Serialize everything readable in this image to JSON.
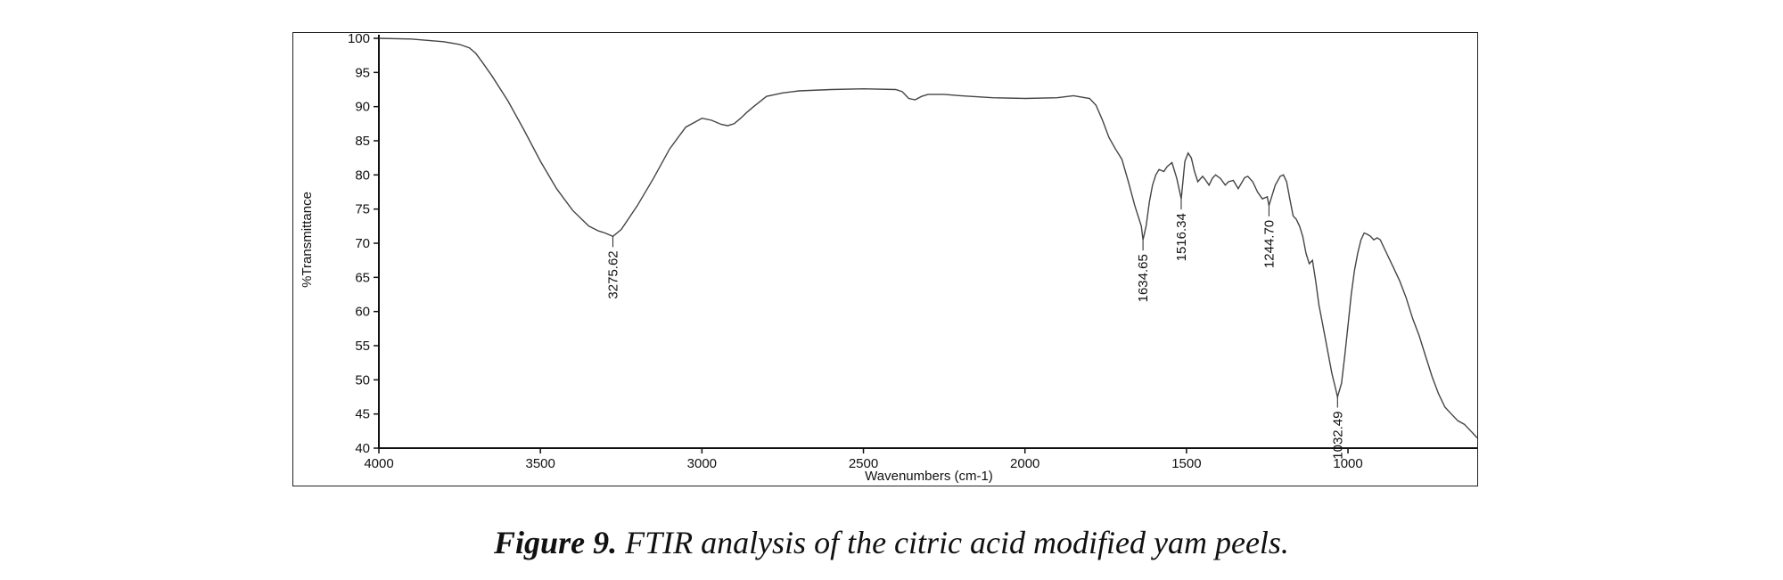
{
  "figure": {
    "caption_prefix": "Figure 9.",
    "caption_text": " FTIR analysis of the citric acid modified yam peels."
  },
  "chart_data": {
    "type": "line",
    "xlabel": "Wavenumbers (cm-1)",
    "ylabel": "%Transmittance",
    "xlim": [
      4000,
      600
    ],
    "ylim": [
      40,
      100
    ],
    "x_reversed": true,
    "grid": false,
    "x_ticks": [
      4000,
      3500,
      3000,
      2500,
      2000,
      1500,
      1000
    ],
    "y_ticks": [
      40,
      45,
      50,
      55,
      60,
      65,
      70,
      75,
      80,
      85,
      90,
      95,
      100
    ],
    "line_color": "#444444",
    "series": [
      {
        "x": [
          4000,
          3900,
          3800,
          3750,
          3720,
          3700,
          3680,
          3650,
          3600,
          3550,
          3500,
          3450,
          3400,
          3350,
          3320,
          3300,
          3275.62,
          3250,
          3200,
          3150,
          3100,
          3050,
          3000,
          2970,
          2940,
          2920,
          2900,
          2880,
          2860,
          2840,
          2800,
          2750,
          2700,
          2600,
          2500,
          2400,
          2380,
          2360,
          2340,
          2320,
          2300,
          2250,
          2200,
          2100,
          2000,
          1900,
          1850,
          1800,
          1780,
          1760,
          1740,
          1720,
          1700,
          1680,
          1660,
          1640,
          1634.65,
          1625,
          1615,
          1605,
          1595,
          1585,
          1570,
          1560,
          1545,
          1530,
          1516.34,
          1505,
          1495,
          1485,
          1475,
          1465,
          1450,
          1440,
          1430,
          1420,
          1410,
          1395,
          1380,
          1370,
          1355,
          1340,
          1320,
          1310,
          1295,
          1280,
          1265,
          1250,
          1244.7,
          1235,
          1225,
          1210,
          1200,
          1190,
          1180,
          1170,
          1160,
          1150,
          1140,
          1130,
          1120,
          1110,
          1100,
          1090,
          1080,
          1070,
          1060,
          1050,
          1040,
          1032.49,
          1020,
          1010,
          1000,
          990,
          980,
          970,
          960,
          950,
          940,
          930,
          920,
          910,
          900,
          880,
          860,
          840,
          820,
          800,
          780,
          760,
          740,
          720,
          700,
          680,
          660,
          640,
          620,
          600
        ],
        "y": [
          100,
          99.9,
          99.5,
          99.1,
          98.6,
          97.8,
          96.5,
          94.5,
          90.8,
          86.5,
          82,
          78,
          74.8,
          72.5,
          71.8,
          71.5,
          71,
          72,
          75.5,
          79.5,
          83.8,
          87,
          88.3,
          88,
          87.4,
          87.2,
          87.5,
          88.3,
          89.2,
          90,
          91.5,
          92,
          92.3,
          92.5,
          92.6,
          92.5,
          92.2,
          91.2,
          91,
          91.5,
          91.8,
          91.8,
          91.6,
          91.3,
          91.2,
          91.3,
          91.6,
          91.2,
          90.2,
          88,
          85.5,
          83.8,
          82.3,
          79,
          75.5,
          72.5,
          70.5,
          72.5,
          76,
          78.5,
          80,
          80.8,
          80.5,
          81.2,
          81.8,
          79.5,
          76.5,
          82,
          83.2,
          82.5,
          80.5,
          79,
          79.8,
          79.2,
          78.5,
          79.5,
          80,
          79.5,
          78.5,
          79,
          79.2,
          78,
          79.6,
          79.8,
          79,
          77.5,
          76.5,
          76.8,
          75.5,
          77,
          78.5,
          79.8,
          80,
          79,
          76.5,
          74,
          73.5,
          72.5,
          71,
          68.5,
          67,
          67.5,
          64.5,
          61,
          58.5,
          56,
          53.5,
          51,
          49,
          47.5,
          49.5,
          53.5,
          58,
          62.5,
          66,
          68.5,
          70.5,
          71.5,
          71.3,
          71,
          70.5,
          70.8,
          70.5,
          68.5,
          66.5,
          64.5,
          62,
          59,
          56.5,
          53.5,
          50.5,
          48,
          46,
          45,
          44,
          43.5,
          42.5,
          41.5
        ]
      }
    ],
    "annotations": [
      {
        "x": 3275.62,
        "y": 71,
        "label": "3275.62"
      },
      {
        "x": 1634.65,
        "y": 70.5,
        "label": "1634.65"
      },
      {
        "x": 1516.34,
        "y": 76.5,
        "label": "1516.34"
      },
      {
        "x": 1244.7,
        "y": 75.5,
        "label": "1244.70"
      },
      {
        "x": 1032.49,
        "y": 47.5,
        "label": "1032.49"
      }
    ]
  }
}
